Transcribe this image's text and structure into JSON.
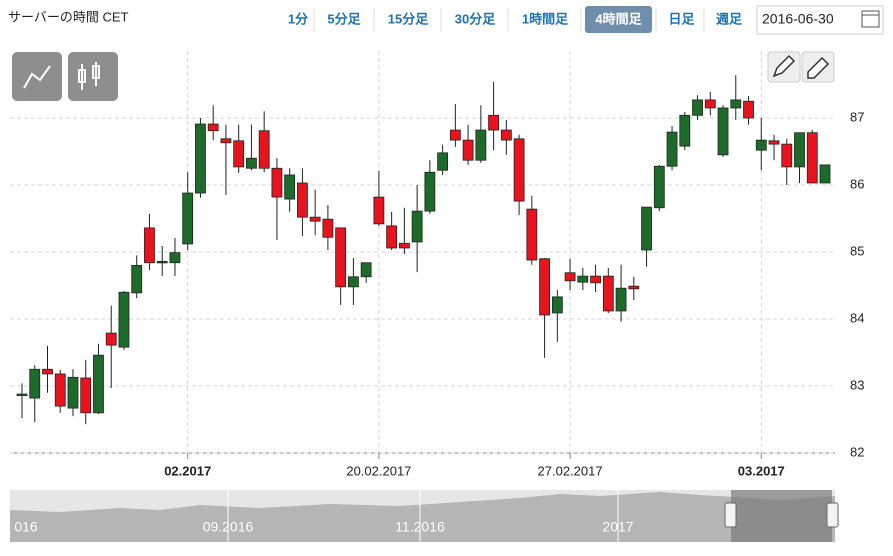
{
  "header": {
    "server_time": "サーバーの時間 CET",
    "buttons": [
      "1分",
      "5分足",
      "15分足",
      "30分足",
      "1時間足",
      "4時間足",
      "日足",
      "週足"
    ],
    "active_button": 5,
    "date": "2016-06-30"
  },
  "chart_data": {
    "type": "candlestick",
    "categories": [
      null,
      null,
      null,
      null,
      null,
      null,
      null,
      null,
      null,
      null,
      null,
      null,
      null,
      "02.2017",
      null,
      null,
      null,
      null,
      null,
      null,
      null,
      null,
      null,
      null,
      null,
      null,
      null,
      null,
      "20.02.2017",
      null,
      null,
      null,
      null,
      null,
      null,
      null,
      null,
      null,
      null,
      null,
      null,
      null,
      null,
      "27.02.2017",
      null,
      null,
      null,
      null,
      null,
      null,
      null,
      null,
      null,
      null,
      null,
      null,
      null,
      null,
      "03.2017",
      null,
      null,
      null,
      null,
      null
    ],
    "open": [
      82.86,
      82.82,
      83.25,
      83.18,
      82.67,
      83.12,
      82.6,
      83.79,
      83.58,
      84.39,
      85.36,
      84.85,
      84.84,
      85.12,
      85.88,
      86.91,
      86.69,
      86.66,
      86.25,
      86.81,
      86.25,
      85.79,
      86.03,
      85.52,
      85.49,
      85.36,
      84.48,
      84.63,
      85.82,
      85.39,
      85.13,
      85.15,
      85.61,
      86.22,
      86.82,
      86.67,
      86.37,
      87.04,
      86.82,
      86.69,
      85.64,
      84.9,
      84.09,
      84.69,
      84.55,
      84.64,
      84.64,
      84.12,
      84.49,
      85.03,
      85.66,
      86.28,
      86.58,
      87.04,
      87.27,
      86.45,
      87.15,
      87.25,
      86.52,
      86.66,
      86.61,
      86.27,
      86.78,
      86.03
    ],
    "high": [
      83.04,
      83.31,
      83.6,
      83.24,
      83.25,
      83.39,
      83.63,
      84.2,
      84.42,
      84.95,
      85.57,
      85.09,
      85.21,
      86.19,
      87.0,
      87.19,
      86.9,
      86.9,
      86.9,
      87.1,
      86.4,
      86.25,
      86.25,
      85.93,
      85.7,
      85.36,
      84.91,
      84.84,
      86.21,
      85.6,
      85.66,
      86.0,
      86.37,
      86.6,
      87.21,
      86.9,
      87.19,
      87.54,
      86.97,
      86.75,
      85.84,
      84.91,
      84.43,
      84.9,
      84.76,
      84.81,
      84.76,
      84.81,
      84.63,
      85.67,
      86.3,
      86.88,
      87.09,
      87.34,
      87.39,
      87.19,
      87.64,
      87.33,
      87.0,
      86.75,
      86.69,
      86.78,
      86.82,
      86.3
    ],
    "low": [
      82.52,
      82.46,
      82.9,
      82.6,
      82.55,
      82.43,
      82.58,
      82.97,
      83.54,
      84.31,
      84.73,
      84.64,
      84.64,
      85.03,
      85.81,
      86.67,
      85.85,
      86.18,
      86.22,
      86.19,
      85.18,
      85.6,
      85.24,
      85.25,
      85.03,
      84.21,
      84.21,
      84.54,
      85.39,
      85.03,
      84.97,
      84.7,
      85.57,
      86.15,
      86.57,
      86.3,
      86.33,
      86.52,
      86.45,
      85.55,
      84.81,
      83.42,
      83.66,
      84.43,
      84.43,
      84.4,
      84.09,
      83.96,
      84.28,
      84.78,
      85.61,
      86.22,
      86.52,
      86.97,
      87.04,
      86.42,
      86.97,
      86.9,
      86.22,
      86.37,
      86.0,
      86.03,
      86.03,
      86.03
    ],
    "close": [
      82.88,
      83.25,
      83.18,
      82.7,
      83.13,
      82.6,
      83.46,
      83.61,
      84.4,
      84.8,
      84.84,
      84.86,
      84.99,
      85.88,
      86.91,
      86.81,
      86.63,
      86.27,
      86.4,
      86.25,
      85.82,
      86.15,
      85.52,
      85.46,
      85.22,
      84.48,
      84.63,
      84.84,
      85.42,
      85.06,
      85.06,
      85.61,
      86.19,
      86.48,
      86.67,
      86.37,
      86.82,
      86.82,
      86.67,
      85.76,
      84.88,
      84.06,
      84.33,
      84.57,
      84.64,
      84.54,
      84.12,
      84.46,
      84.45,
      85.67,
      86.28,
      86.79,
      87.04,
      87.27,
      87.15,
      87.15,
      87.27,
      87.0,
      86.67,
      86.61,
      86.27,
      86.78,
      86.03,
      86.3
    ],
    "up_color": "#1d6b2b",
    "down_color": "#e8131c",
    "ylim": [
      82,
      88
    ],
    "yticks": [
      82,
      83,
      84,
      85,
      86,
      87
    ],
    "grid": true
  },
  "navigator": {
    "labels": [
      "016",
      "09.2016",
      "11.2016",
      "2017"
    ]
  }
}
